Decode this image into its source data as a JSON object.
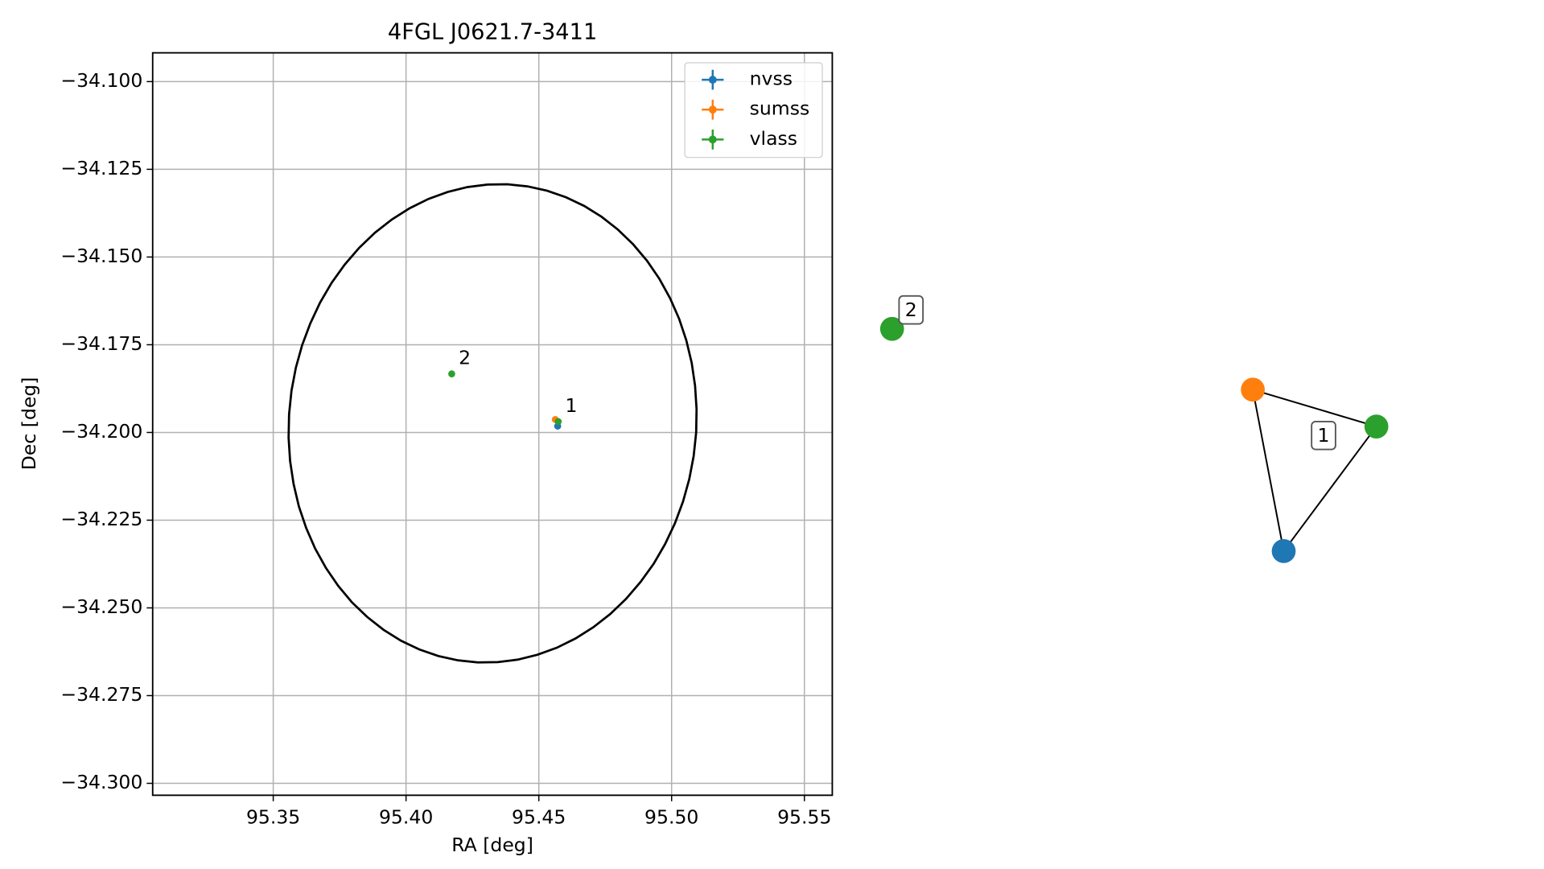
{
  "chart_data": [
    {
      "type": "scatter",
      "title": "4FGL J0621.7-3411",
      "x_label": "RA [deg]",
      "y_label": "Dec [deg]",
      "xlim": [
        95.3046,
        95.5605
      ],
      "ylim": [
        -34.3034,
        -34.0918
      ],
      "xticks": [
        {
          "value": 95.35,
          "label": "95.35"
        },
        {
          "value": 95.4,
          "label": "95.40"
        },
        {
          "value": 95.45,
          "label": "95.45"
        },
        {
          "value": 95.5,
          "label": "95.50"
        },
        {
          "value": 95.55,
          "label": "95.55"
        }
      ],
      "yticks": [
        {
          "value": -34.1,
          "label": "−34.100"
        },
        {
          "value": -34.125,
          "label": "−34.125"
        },
        {
          "value": -34.15,
          "label": "−34.150"
        },
        {
          "value": -34.175,
          "label": "−34.175"
        },
        {
          "value": -34.2,
          "label": "−34.200"
        },
        {
          "value": -34.225,
          "label": "−34.225"
        },
        {
          "value": -34.25,
          "label": "−34.250"
        },
        {
          "value": -34.275,
          "label": "−34.275"
        },
        {
          "value": -34.3,
          "label": "−34.300"
        }
      ],
      "grid": true,
      "legend": "upper right",
      "ellipse": {
        "ra": 95.4326,
        "dec": -34.1974,
        "a": 0.068,
        "b": 0.077,
        "angle": 8
      },
      "series": [
        {
          "name": "nvss",
          "color": "#1f77b4",
          "x": [
            95.4571
          ],
          "y": [
            -34.1982
          ]
        },
        {
          "name": "sumss",
          "color": "#ff7f0e",
          "x": [
            95.4562
          ],
          "y": [
            -34.1963
          ]
        },
        {
          "name": "vlass",
          "color": "#2ca02c",
          "x": [
            95.4573,
            95.4172
          ],
          "y": [
            -34.1969,
            -34.1833
          ],
          "labels": [
            "1",
            "2"
          ]
        }
      ]
    },
    {
      "type": "network",
      "nodes": [
        {
          "color": "#2ca02c"
        },
        {
          "color": "#ff7f0e"
        },
        {
          "color": "#2ca02c"
        },
        {
          "color": "#1f77b4"
        }
      ],
      "groups": [
        {
          "label": "2",
          "nodes": [
            0
          ]
        },
        {
          "label": "1",
          "nodes": [
            1,
            2,
            3
          ]
        }
      ]
    }
  ]
}
